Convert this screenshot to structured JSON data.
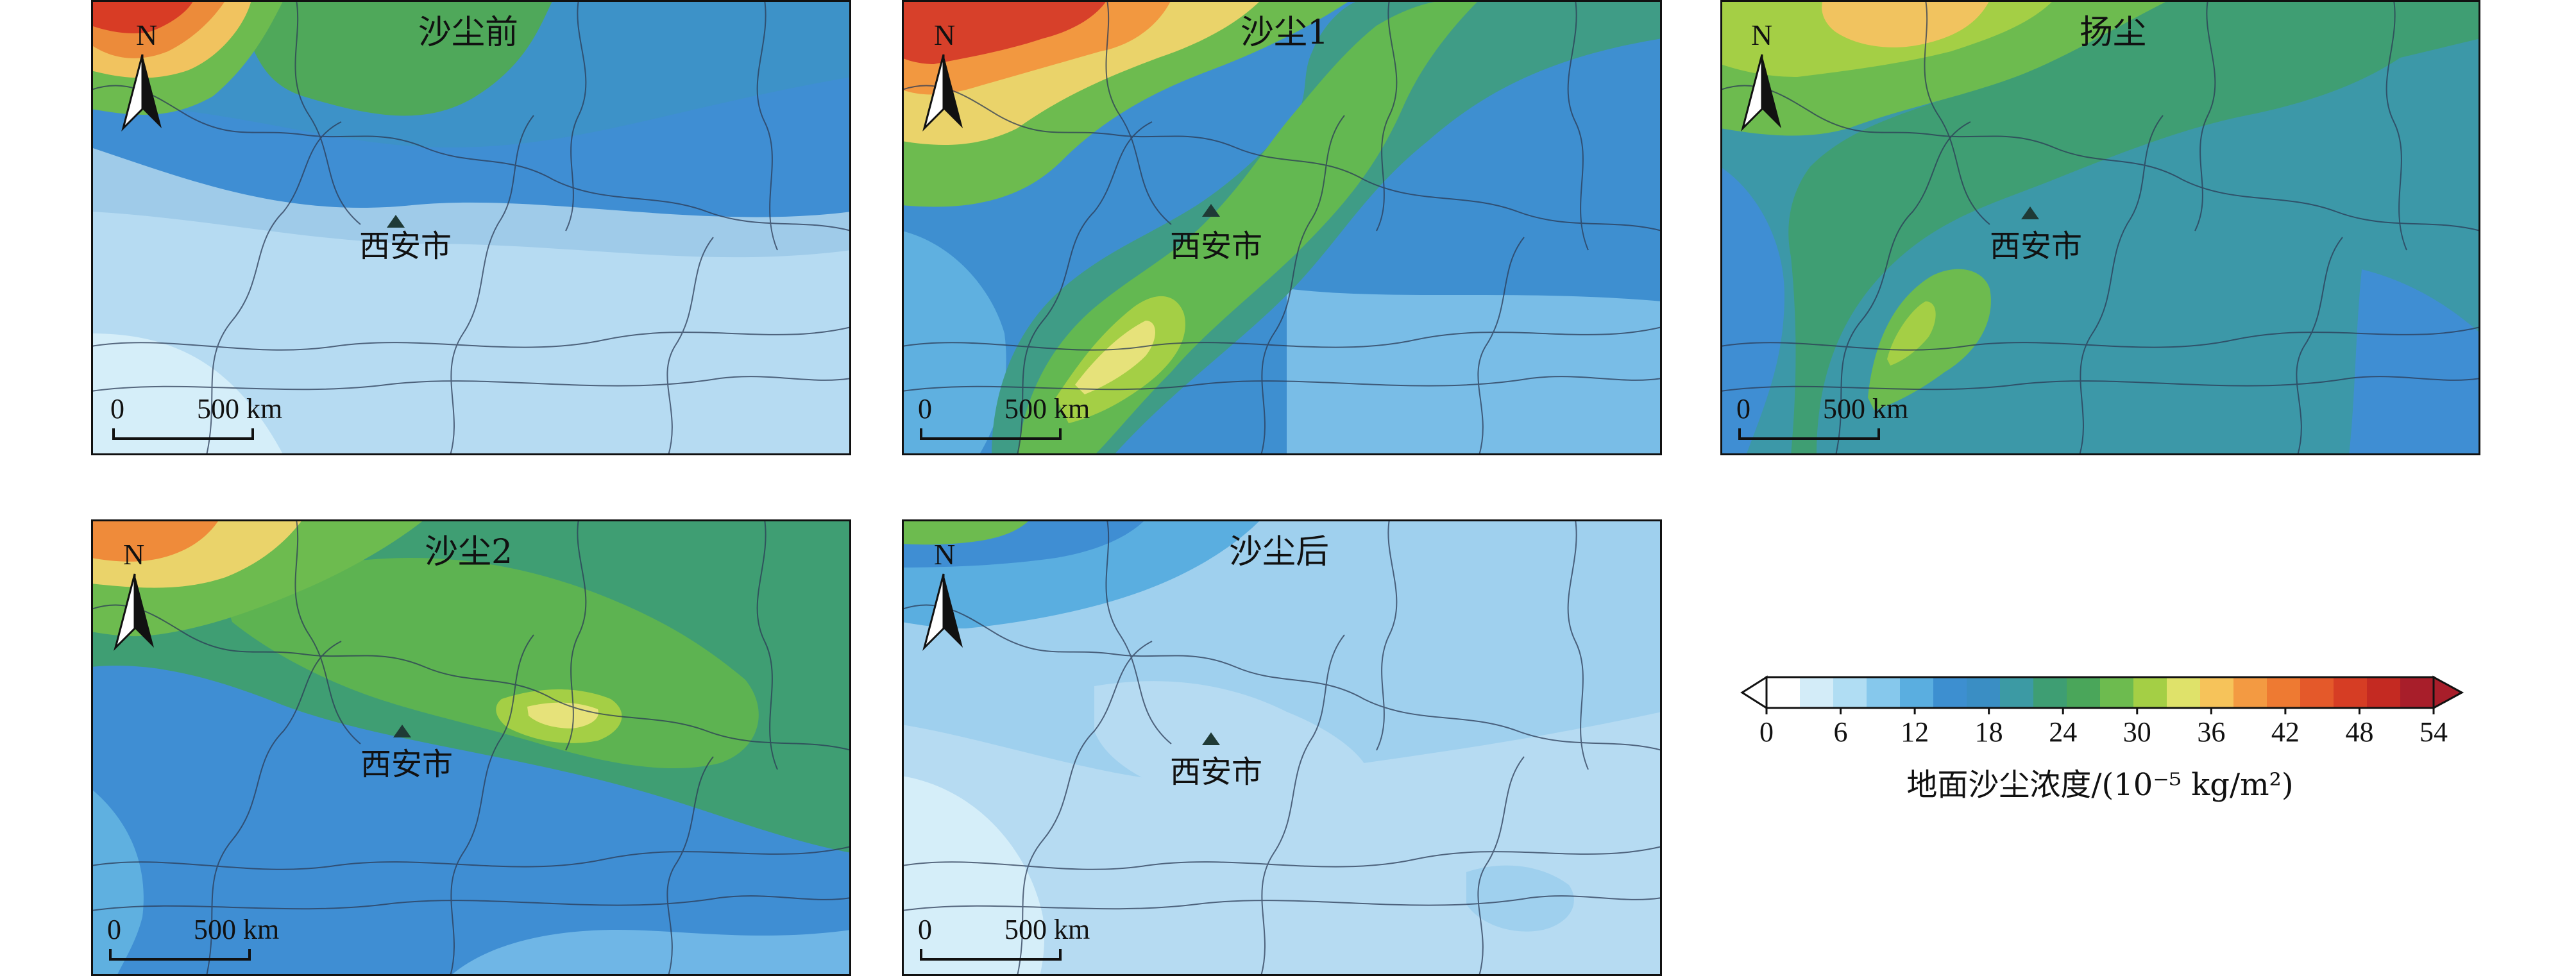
{
  "figure": {
    "city_label": "西安市",
    "north_label": "N",
    "scale_zero": "0",
    "scale_distance": "500 km"
  },
  "panels": [
    {
      "id": "p1",
      "title": "沙尘前",
      "level": "low-mid"
    },
    {
      "id": "p2",
      "title": "沙尘1",
      "level": "high"
    },
    {
      "id": "p3",
      "title": "扬尘",
      "level": "mid"
    },
    {
      "id": "p4",
      "title": "沙尘2",
      "level": "mid-high"
    },
    {
      "id": "p5",
      "title": "沙尘后",
      "level": "low"
    }
  ],
  "colorbar": {
    "label": "地面沙尘浓度/(10⁻⁵ kg/m²)",
    "ticks": [
      "0",
      "6",
      "12",
      "18",
      "24",
      "30",
      "36",
      "42",
      "48",
      "54"
    ],
    "colors": [
      "#ffffff",
      "#d3ecf8",
      "#b0ddf3",
      "#86c8ec",
      "#5aaee0",
      "#3d8fd0",
      "#3a8ec4",
      "#3c9aa4",
      "#3e9e73",
      "#4aa65a",
      "#6dbb4f",
      "#a4cf45",
      "#dfe26a",
      "#f6c35a",
      "#f39a42",
      "#ee7a32",
      "#e4592a",
      "#d63d24",
      "#c42a22",
      "#a81e2a"
    ]
  }
}
